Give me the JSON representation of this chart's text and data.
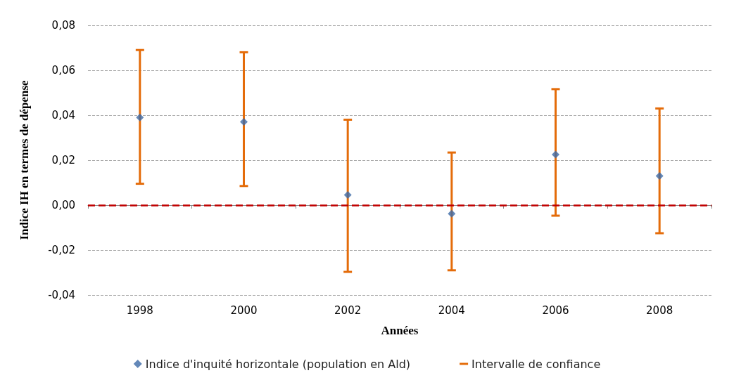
{
  "chart_data": {
    "type": "scatter",
    "xlabel": "Années",
    "ylabel": "Indice IH en termes de dépense",
    "categories": [
      "1998",
      "2000",
      "2002",
      "2004",
      "2006",
      "2008"
    ],
    "series": [
      {
        "name": "Indice d'inquité horizontale (population en Ald)",
        "color": "#3c6aa6",
        "values": [
          0.039,
          0.037,
          0.0045,
          -0.0038,
          0.0225,
          0.013
        ],
        "errors": [
          [
            0.0095,
            0.069
          ],
          [
            0.0085,
            0.068
          ],
          [
            -0.0297,
            0.038
          ],
          [
            -0.029,
            0.0234
          ],
          [
            -0.0047,
            0.0516
          ],
          [
            -0.0125,
            0.043
          ]
        ]
      },
      {
        "name": "Intervalle de confiance",
        "color": "#e46c0a",
        "values": [
          null,
          null,
          null,
          null,
          null,
          null
        ]
      }
    ],
    "marker": "diamond",
    "ylim": [
      -0.04,
      0.08
    ],
    "yticks": [
      {
        "value": -0.04,
        "label": "-0,04"
      },
      {
        "value": -0.02,
        "label": "-0,02"
      },
      {
        "value": 0,
        "label": "0,00"
      },
      {
        "value": 0.02,
        "label": "0,02"
      },
      {
        "value": 0.04,
        "label": "0,04"
      },
      {
        "value": 0.06,
        "label": "0,06"
      },
      {
        "value": 0.08,
        "label": "0,08"
      }
    ],
    "grid": "y",
    "legend": "bottom",
    "ref_lines": [
      {
        "axis": "y",
        "value": 0,
        "color": "#c00000",
        "line_style": "dashed"
      }
    ]
  }
}
